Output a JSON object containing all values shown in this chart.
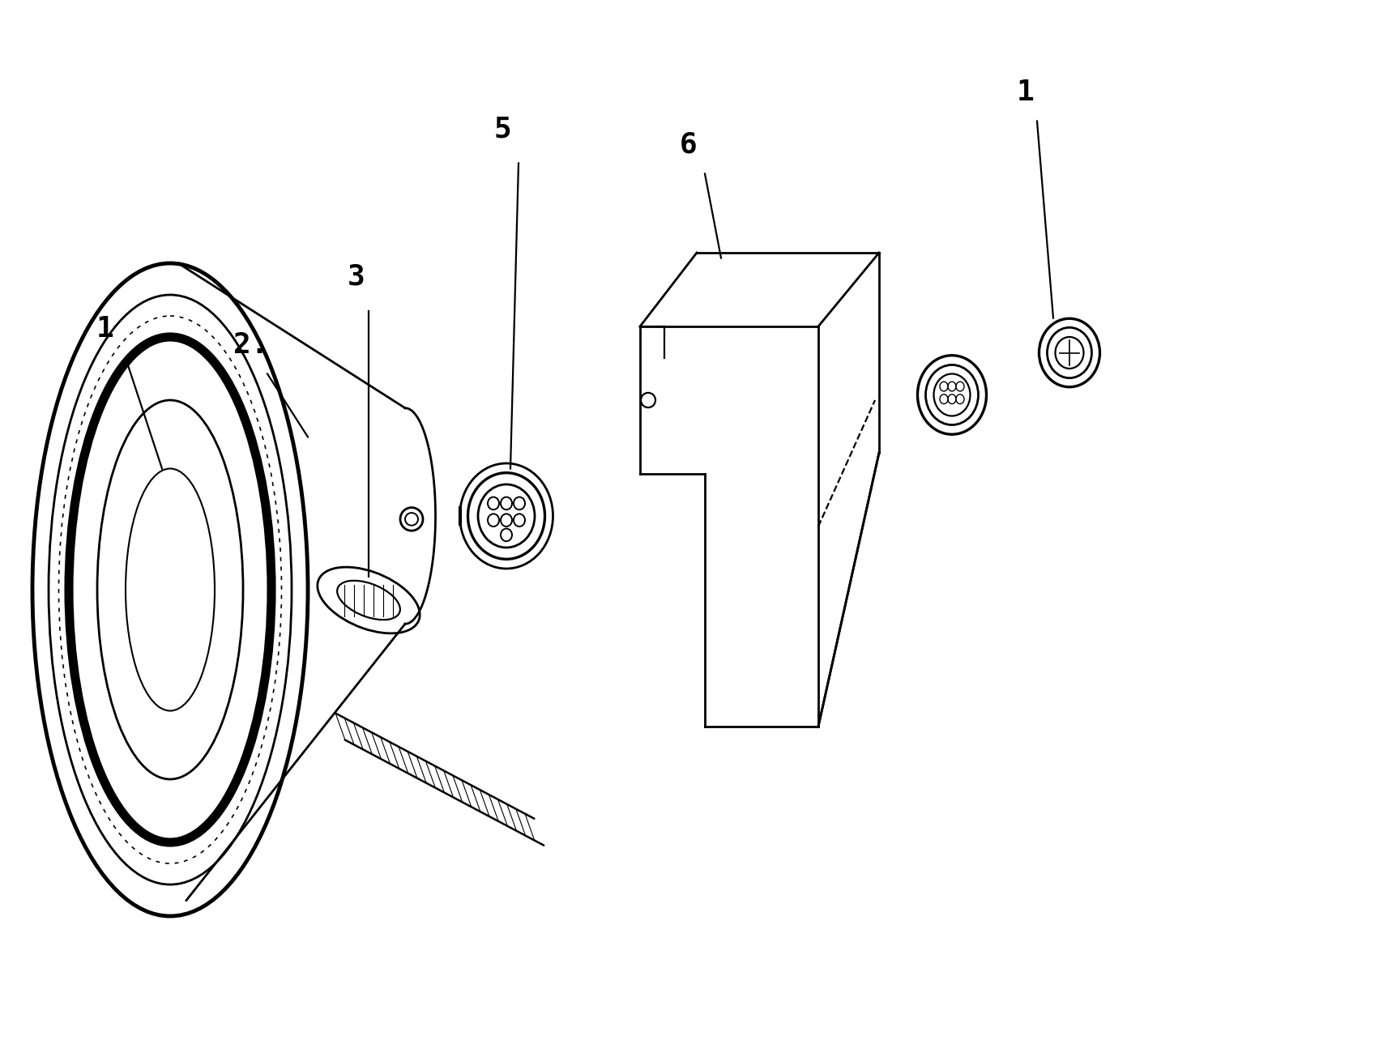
{
  "background_color": "#ffffff",
  "line_color": "#000000",
  "figsize": [
    17.28,
    13.0
  ],
  "dpi": 100,
  "font_size": 26
}
